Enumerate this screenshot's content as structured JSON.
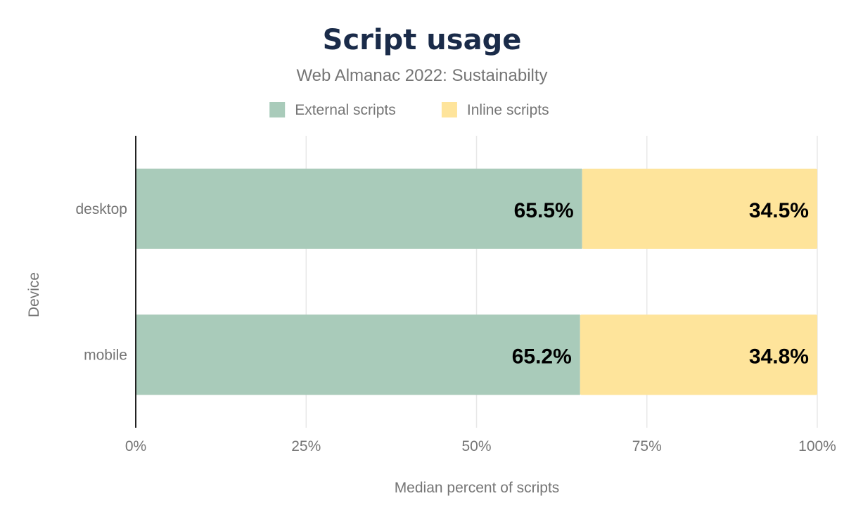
{
  "chart_data": {
    "type": "bar",
    "orientation": "horizontal",
    "stacked": true,
    "title": "Script usage",
    "subtitle": "Web Almanac 2022: Sustainabilty",
    "xlabel": "Median percent of scripts",
    "ylabel": "Device",
    "categories": [
      "desktop",
      "mobile"
    ],
    "series": [
      {
        "name": "External scripts",
        "color": "#a9cbba",
        "values": [
          65.5,
          65.2
        ],
        "labels": [
          "65.5%",
          "65.2%"
        ]
      },
      {
        "name": "Inline scripts",
        "color": "#fee49b",
        "values": [
          34.5,
          34.8
        ],
        "labels": [
          "34.5%",
          "34.8%"
        ]
      }
    ],
    "xlim": [
      0,
      100
    ],
    "xticks": [
      "0%",
      "25%",
      "50%",
      "75%",
      "100%"
    ],
    "grid": true,
    "legend_position": "top-center"
  }
}
